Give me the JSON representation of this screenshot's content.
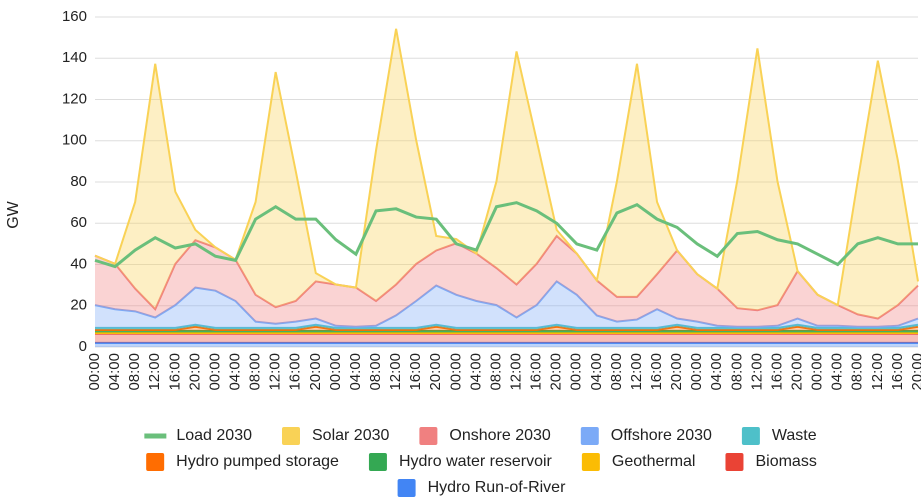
{
  "chart_data": {
    "type": "stacked-area",
    "y_label": "GW",
    "categories": [
      "00:00",
      "04:00",
      "08:00",
      "12:00",
      "16:00",
      "20:00",
      "00:00",
      "04:00",
      "08:00",
      "12:00",
      "16:00",
      "20:00",
      "00:00",
      "04:00",
      "08:00",
      "12:00",
      "16:00",
      "20:00",
      "00:00",
      "04:00",
      "08:00",
      "12:00",
      "16:00",
      "20:00",
      "00:00",
      "04:00",
      "08:00",
      "12:00",
      "16:00",
      "20:00",
      "00:00",
      "04:00",
      "08:00",
      "12:00",
      "16:00",
      "20:00",
      "00:00",
      "04:00",
      "08:00",
      "12:00",
      "16:00",
      "20:00"
    ],
    "ylim": [
      0,
      160
    ],
    "yticks": [
      0,
      20,
      40,
      60,
      80,
      100,
      120,
      140,
      160
    ],
    "grid": true,
    "line_series": {
      "name": "Load 2030",
      "color": "#6abf7b",
      "values": [
        42,
        39,
        47,
        53,
        48,
        50,
        44,
        42,
        62,
        68,
        62,
        62,
        52,
        45,
        66,
        67,
        63,
        62,
        50,
        47,
        68,
        70,
        66,
        60,
        50,
        47,
        65,
        69,
        62,
        58,
        50,
        44,
        55,
        56,
        52,
        50,
        45,
        40,
        50,
        53,
        50,
        50
      ]
    },
    "series": [
      {
        "name": "Hydro Run-of-River",
        "color": "#4285f4",
        "values": [
          2,
          2,
          2,
          2,
          2,
          2,
          2,
          2,
          2,
          2,
          2,
          2,
          2,
          2,
          2,
          2,
          2,
          2,
          2,
          2,
          2,
          2,
          2,
          2,
          2,
          2,
          2,
          2,
          2,
          2,
          2,
          2,
          2,
          2,
          2,
          2,
          2,
          2,
          2,
          2,
          2,
          2
        ]
      },
      {
        "name": "Biomass",
        "color": "#ea4335",
        "values": [
          4.5,
          4.5,
          4.5,
          4.5,
          4.5,
          4.5,
          4.5,
          4.5,
          4.5,
          4.5,
          4.5,
          4.5,
          4.5,
          4.5,
          4.5,
          4.5,
          4.5,
          4.5,
          4.5,
          4.5,
          4.5,
          4.5,
          4.5,
          4.5,
          4.5,
          4.5,
          4.5,
          4.5,
          4.5,
          4.5,
          4.5,
          4.5,
          4.5,
          4.5,
          4.5,
          4.5,
          4.5,
          4.5,
          4.5,
          4.5,
          4.5,
          4.5
        ]
      },
      {
        "name": "Geothermal",
        "color": "#fbbc04",
        "values": [
          0.3,
          0.3,
          0.3,
          0.3,
          0.3,
          0.3,
          0.3,
          0.3,
          0.3,
          0.3,
          0.3,
          0.3,
          0.3,
          0.3,
          0.3,
          0.3,
          0.3,
          0.3,
          0.3,
          0.3,
          0.3,
          0.3,
          0.3,
          0.3,
          0.3,
          0.3,
          0.3,
          0.3,
          0.3,
          0.3,
          0.3,
          0.3,
          0.3,
          0.3,
          0.3,
          0.3,
          0.3,
          0.3,
          0.3,
          0.3,
          0.3,
          0.3
        ]
      },
      {
        "name": "Hydro water reservoir",
        "color": "#34a853",
        "values": [
          1,
          1,
          1,
          1,
          1,
          1,
          1,
          1,
          1,
          1,
          1,
          1,
          1,
          1,
          1,
          1,
          1,
          1,
          1,
          1,
          1,
          1,
          1,
          1,
          1,
          1,
          1,
          1,
          1,
          1,
          1,
          1,
          1,
          1,
          1,
          1,
          1,
          1,
          1,
          1,
          1,
          1
        ]
      },
      {
        "name": "Hydro pumped storage",
        "color": "#ff6d01",
        "values": [
          0.5,
          0.5,
          0.5,
          0.5,
          0.5,
          2,
          0.5,
          0.5,
          0.5,
          0.5,
          0.5,
          2,
          0.5,
          0.5,
          0.5,
          0.5,
          0.5,
          2,
          0.5,
          0.5,
          0.5,
          0.5,
          0.5,
          2,
          0.5,
          0.5,
          0.5,
          0.5,
          0.5,
          2,
          0.5,
          0.5,
          0.5,
          0.5,
          0.5,
          2,
          0.5,
          0.5,
          0.5,
          0.5,
          0.5,
          2
        ]
      },
      {
        "name": "Waste",
        "color": "#4ec0c9",
        "values": [
          1,
          1,
          1,
          1,
          1,
          1,
          1,
          1,
          1,
          1,
          1,
          1,
          1,
          1,
          1,
          1,
          1,
          1,
          1,
          1,
          1,
          1,
          1,
          1,
          1,
          1,
          1,
          1,
          1,
          1,
          1,
          1,
          1,
          1,
          1,
          1,
          1,
          1,
          1,
          1,
          1,
          1
        ]
      },
      {
        "name": "Offshore 2030",
        "color": "#7baaf7",
        "values": [
          11,
          9,
          8,
          5,
          11,
          18,
          18,
          13,
          3,
          2,
          3,
          3,
          1,
          0.5,
          1,
          6,
          13,
          19,
          16,
          13,
          11,
          5,
          11,
          21,
          16,
          6,
          3,
          4,
          9,
          3,
          3,
          1,
          0.5,
          0.5,
          1,
          3,
          1,
          1,
          0.5,
          0.5,
          1,
          3
        ]
      },
      {
        "name": "Onshore 2030",
        "color": "#f08080",
        "values": [
          24,
          22,
          11,
          4,
          20,
          23,
          21,
          20,
          13,
          8,
          10,
          18,
          20,
          19,
          12,
          15,
          18,
          17,
          25,
          23,
          18,
          16,
          20,
          22,
          20,
          17,
          12,
          11,
          17,
          33,
          23,
          18,
          9,
          8,
          10,
          23,
          15,
          10,
          6,
          4,
          10,
          16
        ]
      },
      {
        "name": "Solar 2030",
        "color": "#f9d256",
        "values": [
          0,
          0,
          42,
          119,
          35,
          5,
          0,
          0,
          45,
          114,
          63,
          4,
          0,
          0,
          73,
          124,
          60,
          7,
          2,
          0,
          42,
          113,
          60,
          3,
          0,
          0,
          56,
          113,
          35,
          0,
          0,
          0,
          62,
          127,
          60,
          0,
          0,
          0,
          65,
          125,
          70,
          2
        ]
      }
    ]
  }
}
